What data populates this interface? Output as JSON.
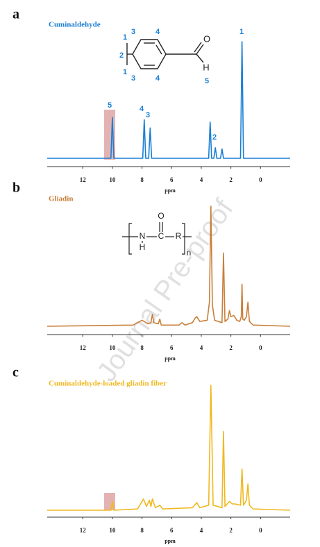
{
  "watermark": "Journal Pre-proof",
  "chart_data": [
    {
      "type": "line",
      "panel_label": "a",
      "title": "Cuminaldehyde",
      "color": "#1a7fd4",
      "x": [
        14.4,
        10.1,
        10.0,
        9.9,
        7.95,
        7.85,
        7.75,
        7.55,
        7.45,
        7.35,
        3.5,
        3.4,
        3.3,
        3.15,
        3.05,
        2.95,
        2.7,
        2.6,
        2.5,
        1.35,
        1.25,
        1.15,
        -2.0
      ],
      "values": [
        0,
        0,
        35,
        0,
        0,
        33,
        0,
        0,
        26,
        0,
        0,
        31,
        0,
        0,
        9,
        0,
        0,
        8,
        0,
        0,
        100,
        0,
        0
      ],
      "xlim": [
        14.4,
        -2.0
      ],
      "xticks": [
        12,
        10,
        8,
        6,
        4,
        2,
        0
      ],
      "xlabel": "ppm",
      "ylim": [
        0,
        100
      ],
      "peak_labels": [
        "5",
        "4",
        "3",
        "2",
        "1"
      ],
      "structure_labels": [
        "1",
        "2",
        "1",
        "3",
        "4",
        "3",
        "4",
        "O",
        "H",
        "5"
      ]
    },
    {
      "type": "line",
      "panel_label": "b",
      "title": "Gliadin",
      "color": "#c97f3a",
      "x": [
        14.4,
        8.6,
        8.0,
        7.6,
        7.4,
        7.3,
        7.2,
        6.9,
        6.8,
        6.7,
        5.5,
        5.3,
        5.1,
        4.6,
        4.4,
        4.3,
        4.1,
        3.6,
        3.45,
        3.35,
        3.25,
        3.1,
        2.6,
        2.5,
        2.4,
        2.2,
        2.1,
        2.0,
        1.8,
        1.6,
        1.4,
        1.3,
        1.25,
        1.2,
        1.1,
        0.95,
        0.85,
        0.75,
        0.5,
        -2.0
      ],
      "values": [
        0,
        1,
        5,
        2,
        3,
        10,
        3,
        2,
        6,
        1,
        1,
        3,
        1,
        3,
        7,
        8,
        4,
        5,
        20,
        100,
        18,
        5,
        3,
        61,
        4,
        6,
        13,
        8,
        9,
        5,
        4,
        8,
        35,
        6,
        5,
        8,
        20,
        4,
        1,
        0
      ],
      "xlim": [
        14.4,
        -2.0
      ],
      "xticks": [
        12,
        10,
        8,
        6,
        4,
        2,
        0
      ],
      "xlabel": "ppm",
      "ylim": [
        0,
        100
      ],
      "structure_labels": [
        "N",
        "C",
        "R",
        "O",
        "H",
        "n"
      ]
    },
    {
      "type": "line",
      "panel_label": "c",
      "title": "Cuminaldehyde-loaded gliadin fiber",
      "color": "#f0b820",
      "x": [
        14.4,
        10.1,
        10.0,
        9.9,
        8.3,
        7.9,
        7.7,
        7.5,
        7.4,
        7.3,
        7.1,
        6.8,
        6.6,
        4.6,
        4.3,
        4.1,
        3.5,
        3.35,
        3.2,
        2.6,
        2.5,
        2.4,
        2.1,
        1.9,
        1.7,
        1.35,
        1.25,
        1.15,
        0.95,
        0.85,
        0.75,
        0.5,
        -2.0
      ],
      "values": [
        0,
        0,
        7,
        0,
        1,
        9,
        3,
        8,
        3,
        9,
        2,
        4,
        1,
        2,
        6,
        2,
        4,
        100,
        4,
        2,
        63,
        3,
        7,
        5,
        5,
        4,
        33,
        4,
        8,
        21,
        4,
        1,
        0
      ],
      "xlim": [
        14.4,
        -2.0
      ],
      "xticks": [
        12,
        10,
        8,
        6,
        4,
        2,
        0
      ],
      "xlabel": "ppm",
      "ylim": [
        0,
        100
      ]
    }
  ]
}
